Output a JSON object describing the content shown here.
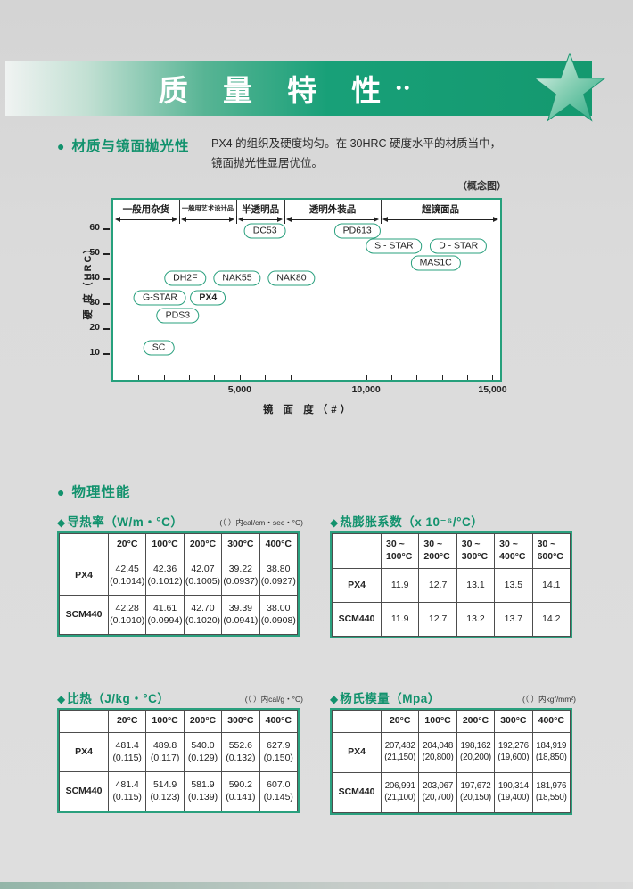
{
  "colors": {
    "accent_green": "#12926d",
    "banner_green": "#18a078",
    "table_border_green": "#2aa07e"
  },
  "banner": {
    "title": "质 量 特 性",
    "dots": "••"
  },
  "section_material": {
    "bullet": "●",
    "heading": "材质与镜面抛光性",
    "desc_line1": "PX4 的组织及硬度均匀。在 30HRC 硬度水平的材质当中，",
    "desc_line2": "镜面抛光性显居优位。"
  },
  "chart_data": {
    "type": "scatter",
    "note": "（概念图）",
    "xlabel": "镜 面 度（#）",
    "ylabel": "硬 度（HRC）",
    "x_axis": {
      "min": 0,
      "max": 15300,
      "tick_step": 1000,
      "labeled_ticks": [
        {
          "value": 5000,
          "label": "5,000"
        },
        {
          "value": 10000,
          "label": "10,000"
        },
        {
          "value": 15000,
          "label": "15,000"
        }
      ]
    },
    "y_axis": {
      "unit": "HRC",
      "ticks": [
        60,
        50,
        40,
        30,
        20,
        10
      ]
    },
    "categories": [
      {
        "label": "一般用杂货",
        "range": [
          0,
          2600
        ]
      },
      {
        "label": "一般用艺术设计品",
        "range": [
          2600,
          4870
        ]
      },
      {
        "label": "半透明品",
        "range": [
          4870,
          6770
        ]
      },
      {
        "label": "透明外装品",
        "range": [
          6770,
          10580
        ]
      },
      {
        "label": "超镜面品",
        "range": [
          10580,
          15300
        ]
      }
    ],
    "materials": [
      {
        "name": "DC53",
        "hrc": 59,
        "finish": 6000
      },
      {
        "name": "PD613",
        "hrc": 59,
        "finish": 9650
      },
      {
        "name": "S - STAR",
        "hrc": 53,
        "finish": 11100
      },
      {
        "name": "D - STAR",
        "hrc": 53,
        "finish": 13650
      },
      {
        "name": "MAS1C",
        "hrc": 46,
        "finish": 12750
      },
      {
        "name": "DH2F",
        "hrc": 40,
        "finish": 2850
      },
      {
        "name": "NAK55",
        "hrc": 40,
        "finish": 4900
      },
      {
        "name": "NAK80",
        "hrc": 40,
        "finish": 7050
      },
      {
        "name": "G-STAR",
        "hrc": 32,
        "finish": 1850
      },
      {
        "name": "PX4",
        "hrc": 32,
        "finish": 3750,
        "bold": true
      },
      {
        "name": "PDS3",
        "hrc": 25,
        "finish": 2550
      },
      {
        "name": "SC",
        "hrc": 12,
        "finish": 1800
      }
    ]
  },
  "section_physical": {
    "bullet": "●",
    "heading": "物理性能"
  },
  "tables": [
    {
      "marker": "◆",
      "title": "导热率（W/m・°C）",
      "note": "(（ ）内cal/cm・sec・°C)",
      "headers": [
        "20°C",
        "100°C",
        "200°C",
        "300°C",
        "400°C"
      ],
      "rows": [
        {
          "label": "PX4",
          "cells": [
            "42.45\n(0.1014)",
            "42.36\n(0.1012)",
            "42.07\n(0.1005)",
            "39.22\n(0.0937)",
            "38.80\n(0.0927)"
          ]
        },
        {
          "label": "SCM440",
          "cells": [
            "42.28\n(0.1010)",
            "41.61\n(0.0994)",
            "42.70\n(0.1020)",
            "39.39\n(0.0941)",
            "38.00\n(0.0908)"
          ]
        }
      ]
    },
    {
      "marker": "◆",
      "title": "热膨胀系数（x 10⁻⁶/°C）",
      "note": "",
      "headers": [
        "30 ~\n100°C",
        "30 ~\n200°C",
        "30 ~\n300°C",
        "30 ~\n400°C",
        "30 ~\n600°C"
      ],
      "rows": [
        {
          "label": "PX4",
          "cells": [
            "11.9",
            "12.7",
            "13.1",
            "13.5",
            "14.1"
          ]
        },
        {
          "label": "SCM440",
          "cells": [
            "11.9",
            "12.7",
            "13.2",
            "13.7",
            "14.2"
          ]
        }
      ]
    },
    {
      "marker": "◆",
      "title": "比热（J/kg・°C）",
      "note": "(（ ）内cal/g・°C)",
      "headers": [
        "20°C",
        "100°C",
        "200°C",
        "300°C",
        "400°C"
      ],
      "rows": [
        {
          "label": "PX4",
          "cells": [
            "481.4\n(0.115)",
            "489.8\n(0.117)",
            "540.0\n(0.129)",
            "552.6\n(0.132)",
            "627.9\n(0.150)"
          ]
        },
        {
          "label": "SCM440",
          "cells": [
            "481.4\n(0.115)",
            "514.9\n(0.123)",
            "581.9\n(0.139)",
            "590.2\n(0.141)",
            "607.0\n(0.145)"
          ]
        }
      ]
    },
    {
      "marker": "◆",
      "title": "杨氏模量（Mpa）",
      "note": "(（ ）内kgf/mm²)",
      "headers": [
        "20°C",
        "100°C",
        "200°C",
        "300°C",
        "400°C"
      ],
      "rows": [
        {
          "label": "PX4",
          "cells": [
            "207,482\n(21,150)",
            "204,048\n(20,800)",
            "198,162\n(20,200)",
            "192,276\n(19,600)",
            "184,919\n(18,850)"
          ]
        },
        {
          "label": "SCM440",
          "cells": [
            "206,991\n(21,100)",
            "203,067\n(20,700)",
            "197,672\n(20,150)",
            "190,314\n(19,400)",
            "181,976\n(18,550)"
          ]
        }
      ]
    }
  ]
}
